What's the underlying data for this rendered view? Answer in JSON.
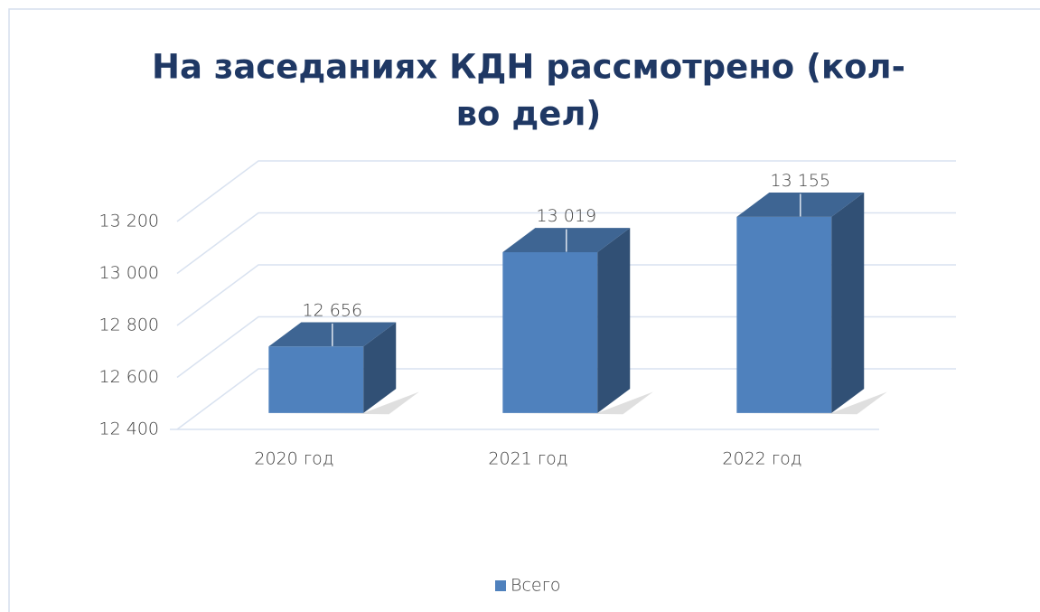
{
  "chart_data": {
    "type": "bar3d",
    "title": "На заседаниях КДН рассмотрено (кол-во дел)",
    "categories": [
      "2020 год",
      "2021 год",
      "2022 год"
    ],
    "series": [
      {
        "name": "Всего",
        "color": "#4f81bd",
        "values": [
          12656,
          13019,
          13155
        ],
        "value_labels": [
          "12 656",
          "13 019",
          "13 155"
        ]
      }
    ],
    "ylim": [
      12400,
      13200
    ],
    "yticks": [
      {
        "value": 12400,
        "label": "12 400"
      },
      {
        "value": 12600,
        "label": "12 600"
      },
      {
        "value": 12800,
        "label": "12 800"
      },
      {
        "value": 13000,
        "label": "13 000"
      },
      {
        "value": 13200,
        "label": "13 200"
      }
    ],
    "grid": true,
    "legend": "bottom"
  }
}
